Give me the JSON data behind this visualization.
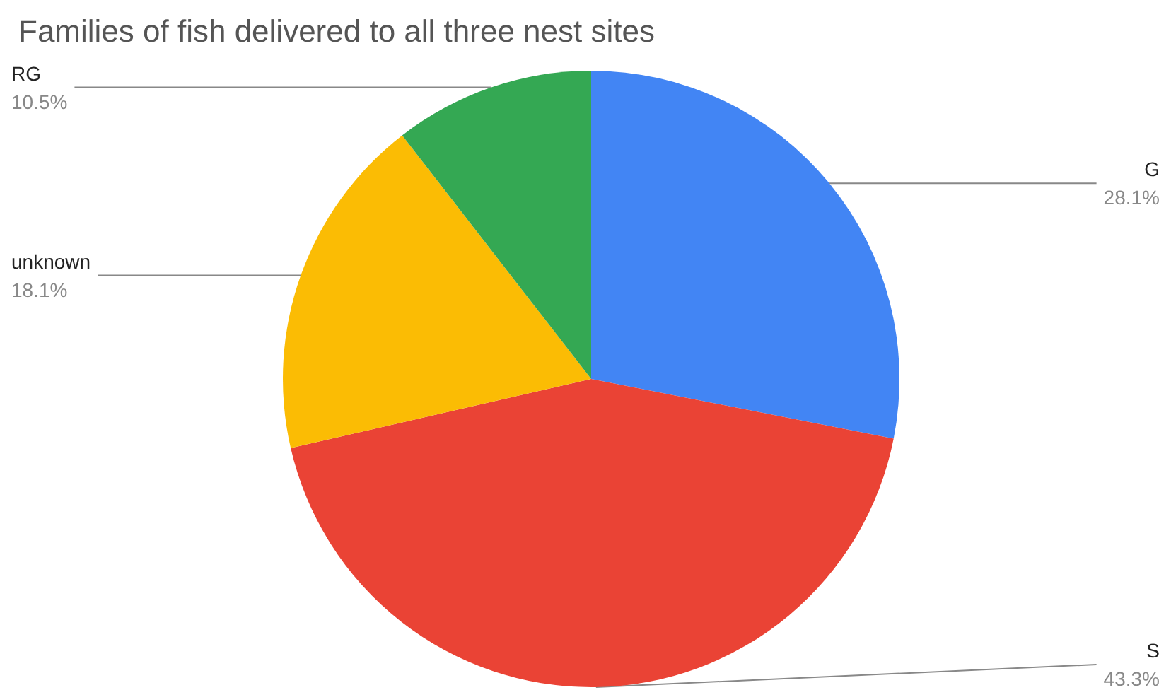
{
  "chart_data": {
    "type": "pie",
    "title": "Families of fish delivered to all three nest sites",
    "categories": [
      "G",
      "S",
      "unknown",
      "RG"
    ],
    "values": [
      28.1,
      43.3,
      18.1,
      10.5
    ],
    "colors": [
      "#4285f4",
      "#ea4335",
      "#fbbc04",
      "#34a853"
    ],
    "value_labels": [
      "28.1%",
      "43.3%",
      "18.1%",
      "10.5%"
    ],
    "legend": false
  }
}
